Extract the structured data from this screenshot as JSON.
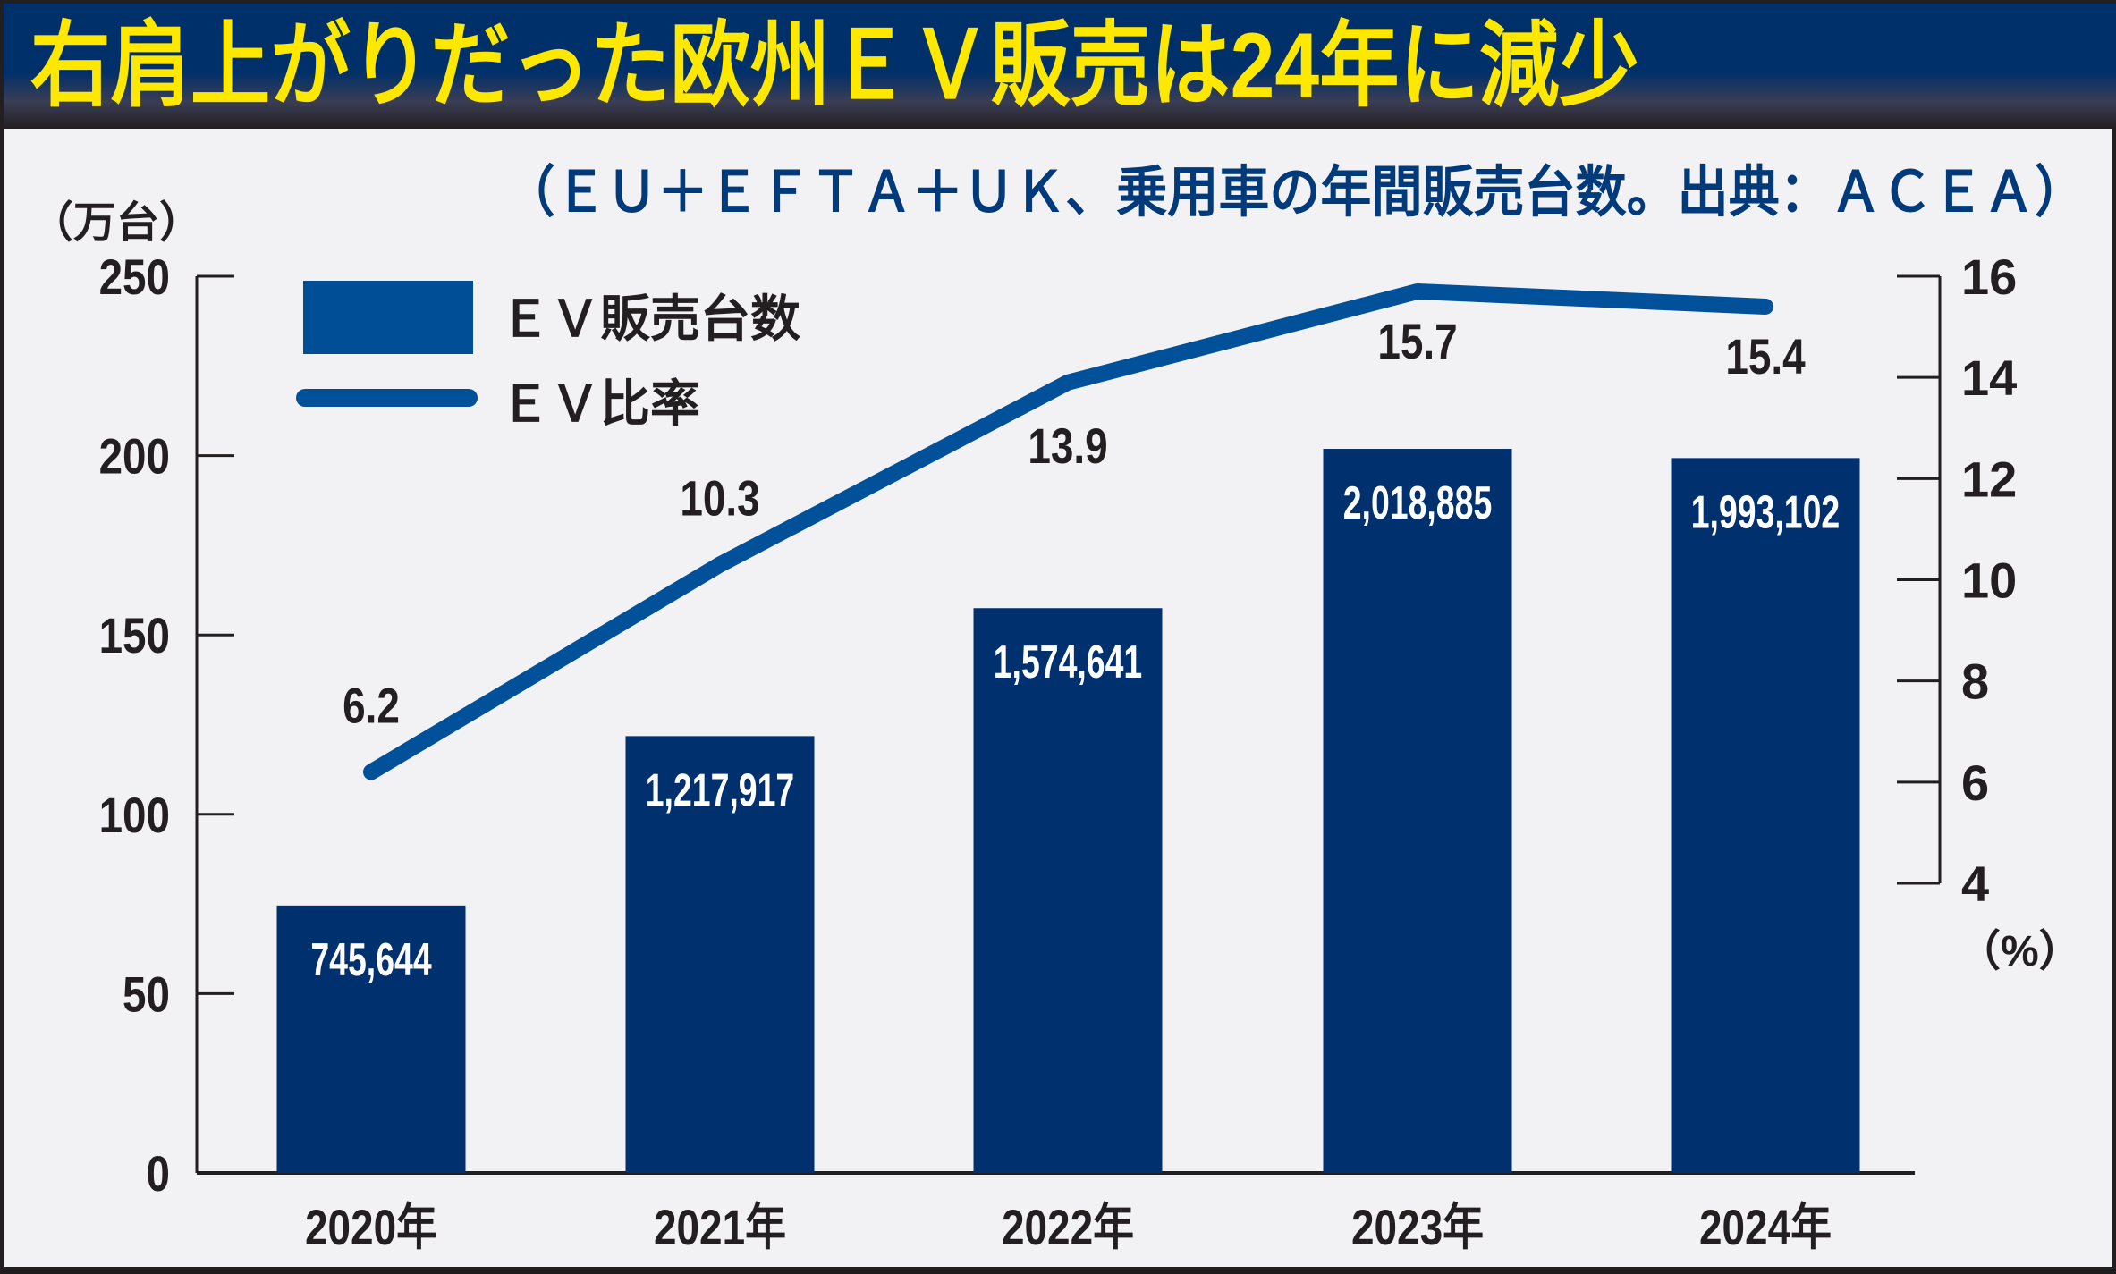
{
  "header": {
    "title": "右肩上がりだった欧州ＥＶ販売は24年に減少",
    "subtitle": "（ＥＵ＋ＥＦＴＡ＋ＵＫ、乗用車の年間販売台数。出典：ＡＣＥＡ）"
  },
  "colors": {
    "title_bg": "#003069",
    "title_text": "#ffe800",
    "subtitle_text": "#003a7a",
    "bar": "#00306e",
    "line": "#00509a",
    "legend_bar": "#004e96",
    "background": "#f2f2f4"
  },
  "chart_data": {
    "type": "bar+line",
    "title": "右肩上がりだった欧州ＥＶ販売は24年に減少",
    "subtitle": "（ＥＵ＋ＥＦＴＡ＋ＵＫ、乗用車の年間販売台数。出典：ＡＣＥＡ）",
    "categories": [
      "2020年",
      "2021年",
      "2022年",
      "2023年",
      "2024年"
    ],
    "series": [
      {
        "name": "ＥＶ販売台数",
        "type": "bar",
        "axis": "left",
        "values": [
          745644,
          1217917,
          1574641,
          2018885,
          1993102
        ],
        "labels": [
          "745,644",
          "1,217,917",
          "1,574,641",
          "2,018,885",
          "1,993,102"
        ]
      },
      {
        "name": "ＥＶ比率",
        "type": "line",
        "axis": "right",
        "values": [
          6.2,
          10.3,
          13.9,
          15.7,
          15.4
        ],
        "labels": [
          "6.2",
          "10.3",
          "13.9",
          "15.7",
          "15.4"
        ]
      }
    ],
    "y_left": {
      "label": "（万台）",
      "ylim": [
        0,
        250
      ],
      "ticks": [
        "250",
        "200",
        "150",
        "100",
        "50",
        "0"
      ],
      "tick_values": [
        250,
        200,
        150,
        100,
        50,
        0
      ],
      "unit_divisor": 10000
    },
    "y_right": {
      "label": "（%）",
      "ylim": [
        4,
        16
      ],
      "ticks": [
        "16",
        "14",
        "12",
        "10",
        "8",
        "6",
        "4"
      ],
      "tick_values": [
        16,
        14,
        12,
        10,
        8,
        6,
        4
      ]
    },
    "legend": {
      "placement": "top-left",
      "items": [
        "ＥＶ販売台数",
        "ＥＶ比率"
      ]
    },
    "grid": false
  }
}
